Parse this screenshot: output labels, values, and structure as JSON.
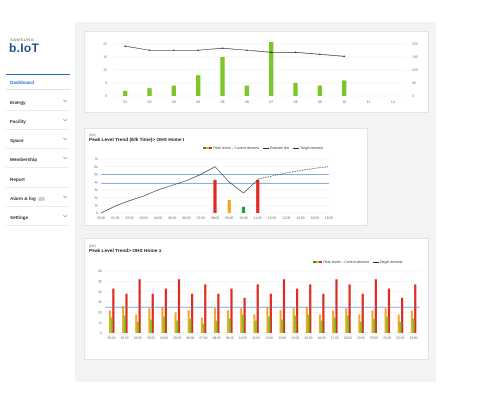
{
  "brand": {
    "vendor": "SAMSUNG",
    "product": "b.IoT"
  },
  "nav": [
    {
      "label": "Dashboard",
      "active": true,
      "chevron": false,
      "toggle": false
    },
    {
      "label": "Energy",
      "active": false,
      "chevron": true,
      "toggle": false
    },
    {
      "label": "Facility",
      "active": false,
      "chevron": true,
      "toggle": false
    },
    {
      "label": "Space",
      "active": false,
      "chevron": true,
      "toggle": false
    },
    {
      "label": "Membership",
      "active": false,
      "chevron": true,
      "toggle": false
    },
    {
      "label": "Report",
      "active": false,
      "chevron": false,
      "toggle": false
    },
    {
      "label": "Alarm & log",
      "active": false,
      "chevron": true,
      "toggle": true
    },
    {
      "label": "Settings",
      "active": false,
      "chevron": true,
      "toggle": false
    }
  ],
  "icons": {
    "chevron": "chevron-down-icon",
    "toggle": "toggle-icon"
  },
  "colors": {
    "green": "#7cc62a",
    "orange": "#f5a623",
    "red": "#e02b20",
    "darkgreen": "#1e9e3a",
    "blue": "#4a7fd0",
    "line": "#2a2a2a",
    "brand": "#1e4f8f"
  },
  "panel2": {
    "title": "Peak Level Trend (Elk Time)> OHS Home I",
    "subtitle": "(kW)",
    "legend": {
      "peak": "Peak levels – Current demand",
      "estimate": "Estimate line",
      "target": "Target demand"
    }
  },
  "panel3": {
    "title": "Peak Level Trend> OHS Home 1",
    "subtitle": "(kW)",
    "legend": {
      "peak": "Peak levels – Current demand",
      "target": "Target demand"
    }
  },
  "chart_data": [
    {
      "type": "bar",
      "categories": [
        "01",
        "02",
        "03",
        "04",
        "05",
        "06",
        "07",
        "08",
        "09",
        "10",
        "11",
        "12"
      ],
      "yticks": [
        "20",
        "15",
        "10",
        "5",
        "0"
      ],
      "ylim": [
        0,
        20
      ],
      "y2ticks": [
        "200",
        "150",
        "100",
        "50",
        "0"
      ],
      "series": [
        {
          "values": [
            2,
            3,
            4,
            8,
            15,
            4,
            29,
            5,
            4,
            6,
            null,
            null
          ]
        },
        {
          "values": [
            22,
            20,
            20,
            20,
            21,
            20,
            19,
            19,
            18,
            17,
            null,
            null
          ]
        }
      ]
    },
    {
      "type": "bar",
      "categories": [
        "00:00",
        "01:00",
        "02:00",
        "03:00",
        "04:00",
        "05:00",
        "06:00",
        "07:00",
        "08:00",
        "09:00",
        "10:00",
        "11:00",
        "12:00",
        "13:00",
        "14:00",
        "15:00",
        "16:00"
      ],
      "yticks": [
        "7k",
        "6k",
        "5k",
        "4k",
        "3k",
        "2k",
        "1k",
        "0"
      ],
      "ylim": [
        0,
        7000
      ],
      "target": 5000,
      "target2": 3800,
      "series": [
        {
          "x": [
            "00:00",
            "01:00",
            "02:00",
            "03:00",
            "04:00",
            "05:00",
            "06:00",
            "07:00",
            "08:00",
            "09:00",
            "10:00",
            "11:00"
          ],
          "values": [
            0,
            900,
            1600,
            2200,
            3000,
            3600,
            4200,
            5000,
            6000,
            4000,
            2600,
            4300
          ]
        },
        {
          "x": [
            "11:00",
            "12:00",
            "13:00",
            "14:00",
            "15:00",
            "16:00"
          ],
          "values": [
            4400,
            4800,
            5200,
            5500,
            5800,
            6000
          ]
        },
        {
          "x": [
            "08:00",
            "09:00",
            "10:00",
            "11:00"
          ],
          "values": [
            4300,
            1700,
            800,
            4300
          ],
          "colors": [
            "red",
            "orange",
            "darkgreen",
            "red"
          ]
        }
      ]
    },
    {
      "type": "bar",
      "categories": [
        "00:00",
        "01:00",
        "02:00",
        "03:00",
        "04:00",
        "05:00",
        "06:00",
        "07:00",
        "08:00",
        "09:00",
        "10:00",
        "11:00",
        "12:00",
        "13:00",
        "14:00",
        "15:00",
        "16:00",
        "17:00",
        "18:00",
        "19:00",
        "20:00",
        "21:00",
        "22:00",
        "23:00"
      ],
      "yticks": [
        "6k",
        "5k",
        "4k",
        "3k",
        "2k",
        "1k",
        "0"
      ],
      "ylim": [
        0,
        6000
      ],
      "target": 2500,
      "series": [
        {
          "values": [
            4300,
            3800,
            5200,
            3800,
            4300,
            5200,
            3800,
            4700,
            3800,
            4300,
            3400,
            4700,
            3800,
            5200,
            4300,
            4700,
            3800,
            5200,
            4700,
            3800,
            5200,
            4300,
            3400,
            4700
          ],
          "color": "red"
        },
        {
          "values": [
            2200,
            2600,
            1800,
            2400,
            2500,
            2000,
            2200,
            1500,
            2400,
            2200,
            2400,
            1800,
            2500,
            2200,
            2400,
            2500,
            1800,
            2200,
            2400,
            1800,
            2200,
            2400,
            1800,
            2200
          ],
          "color": "orange"
        },
        {
          "values": [
            1500,
            1700,
            1100,
            1300,
            1600,
            1200,
            1400,
            900,
            1200,
            1400,
            1800,
            1200,
            1600,
            1300,
            1700,
            1800,
            1200,
            1500,
            1700,
            1100,
            1400,
            1600,
            1100,
            1400
          ],
          "color": "green"
        }
      ]
    }
  ]
}
